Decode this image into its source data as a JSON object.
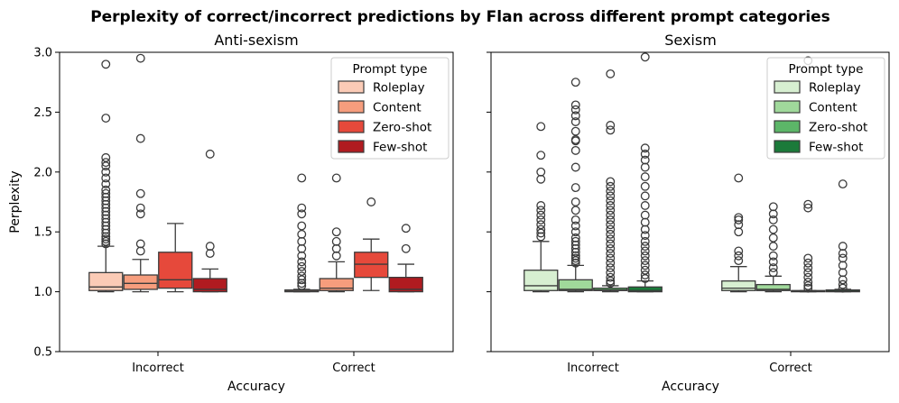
{
  "figure": {
    "title": "Perplexity of correct/incorrect predictions by Flan across different prompt categories"
  },
  "chart_data": [
    {
      "type": "box",
      "title": "Anti-sexism",
      "xlabel": "Accuracy",
      "ylabel": "Perplexity",
      "ylim": [
        0.5,
        3.0
      ],
      "yticks": [
        "0.5",
        "1.0",
        "1.5",
        "2.0",
        "2.5",
        "3.0"
      ],
      "categories": [
        "Incorrect",
        "Correct"
      ],
      "legend": {
        "title": "Prompt type",
        "placement": "top-right"
      },
      "series": [
        {
          "name": "Roleplay",
          "color": "#fbcbb6",
          "boxes": [
            {
              "q1": 1.01,
              "median": 1.04,
              "q3": 1.16,
              "whislo": 1.0,
              "whishi": 1.38,
              "fliers": [
                2.9,
                2.45,
                2.12,
                2.08,
                2.05,
                2.0,
                1.95,
                1.9,
                1.85,
                1.82,
                1.79,
                1.76,
                1.73,
                1.7,
                1.67,
                1.64,
                1.61,
                1.58,
                1.55,
                1.52,
                1.49,
                1.46,
                1.44,
                1.42,
                1.4
              ]
            },
            {
              "q1": 1.0,
              "median": 1.005,
              "q3": 1.015,
              "whislo": 1.0,
              "whishi": 1.02,
              "fliers": [
                1.95,
                1.7,
                1.65,
                1.55,
                1.48,
                1.42,
                1.36,
                1.3,
                1.25,
                1.21,
                1.17,
                1.13,
                1.1,
                1.07,
                1.05
              ]
            }
          ]
        },
        {
          "name": "Content",
          "color": "#f69d7d",
          "boxes": [
            {
              "q1": 1.02,
              "median": 1.07,
              "q3": 1.14,
              "whislo": 1.0,
              "whishi": 1.27,
              "fliers": [
                2.95,
                2.28,
                1.82,
                1.7,
                1.65,
                1.4,
                1.34
              ]
            },
            {
              "q1": 1.01,
              "median": 1.03,
              "q3": 1.11,
              "whislo": 1.0,
              "whishi": 1.25,
              "fliers": [
                1.95,
                1.5,
                1.42,
                1.36,
                1.3
              ]
            }
          ]
        },
        {
          "name": "Zero-shot",
          "color": "#e6493b",
          "boxes": [
            {
              "q1": 1.03,
              "median": 1.1,
              "q3": 1.33,
              "whislo": 1.0,
              "whishi": 1.57,
              "fliers": []
            },
            {
              "q1": 1.12,
              "median": 1.23,
              "q3": 1.33,
              "whislo": 1.01,
              "whishi": 1.44,
              "fliers": [
                1.75
              ]
            }
          ]
        },
        {
          "name": "Few-shot",
          "color": "#b01b20",
          "boxes": [
            {
              "q1": 1.0,
              "median": 1.02,
              "q3": 1.11,
              "whislo": 1.0,
              "whishi": 1.19,
              "fliers": [
                2.15,
                1.38,
                1.32
              ]
            },
            {
              "q1": 1.0,
              "median": 1.02,
              "q3": 1.12,
              "whislo": 1.0,
              "whishi": 1.23,
              "fliers": [
                1.53,
                1.36
              ]
            }
          ]
        }
      ]
    },
    {
      "type": "box",
      "title": "Sexism",
      "xlabel": "Accuracy",
      "ylabel": "",
      "ylim": [
        0.5,
        3.0
      ],
      "categories": [
        "Incorrect",
        "Correct"
      ],
      "legend": {
        "title": "Prompt type",
        "placement": "top-right"
      },
      "series": [
        {
          "name": "Roleplay",
          "color": "#d7efd1",
          "boxes": [
            {
              "q1": 1.01,
              "median": 1.05,
              "q3": 1.18,
              "whislo": 1.0,
              "whishi": 1.42,
              "fliers": [
                2.38,
                2.14,
                2.0,
                1.94,
                1.72,
                1.68,
                1.64,
                1.6,
                1.56,
                1.52,
                1.49,
                1.46
              ]
            },
            {
              "q1": 1.01,
              "median": 1.03,
              "q3": 1.09,
              "whislo": 1.0,
              "whishi": 1.21,
              "fliers": [
                1.95,
                1.62,
                1.6,
                1.56,
                1.5,
                1.34,
                1.3,
                1.26
              ]
            }
          ]
        },
        {
          "name": "Content",
          "color": "#a0d99b",
          "boxes": [
            {
              "q1": 1.01,
              "median": 1.02,
              "q3": 1.1,
              "whislo": 1.0,
              "whishi": 1.22,
              "fliers": [
                2.75,
                2.56,
                2.52,
                2.47,
                2.42,
                2.34,
                2.27,
                2.26,
                2.18,
                2.04,
                1.87,
                1.75,
                1.68,
                1.6,
                1.55,
                1.5,
                1.45,
                1.42,
                1.39,
                1.36,
                1.33,
                1.3,
                1.28,
                1.26,
                1.24
              ]
            },
            {
              "q1": 1.01,
              "median": 1.02,
              "q3": 1.06,
              "whislo": 1.0,
              "whishi": 1.13,
              "fliers": [
                1.71,
                1.65,
                1.6,
                1.52,
                1.45,
                1.38,
                1.3,
                1.25,
                1.2,
                1.16
              ]
            }
          ]
        },
        {
          "name": "Zero-shot",
          "color": "#5cb668",
          "boxes": [
            {
              "q1": 1.01,
              "median": 1.015,
              "q3": 1.03,
              "whislo": 1.0,
              "whishi": 1.05,
              "fliers": [
                2.82,
                2.39,
                2.35,
                1.92,
                1.88,
                1.84,
                1.8,
                1.76,
                1.72,
                1.68,
                1.64,
                1.6,
                1.56,
                1.52,
                1.48,
                1.44,
                1.4,
                1.36,
                1.32,
                1.28,
                1.24,
                1.2,
                1.16,
                1.12,
                1.09,
                1.07
              ]
            },
            {
              "q1": 1.0,
              "median": 1.005,
              "q3": 1.01,
              "whislo": 1.0,
              "whishi": 1.01,
              "fliers": [
                2.93,
                1.73,
                1.7,
                1.28,
                1.24,
                1.2,
                1.16,
                1.12,
                1.08,
                1.05,
                1.03
              ]
            }
          ]
        },
        {
          "name": "Few-shot",
          "color": "#1b7a3a",
          "boxes": [
            {
              "q1": 1.0,
              "median": 1.01,
              "q3": 1.04,
              "whislo": 1.0,
              "whishi": 1.09,
              "fliers": [
                2.96,
                2.2,
                2.15,
                2.1,
                2.04,
                1.96,
                1.88,
                1.8,
                1.72,
                1.64,
                1.58,
                1.52,
                1.47,
                1.42,
                1.38,
                1.34,
                1.3,
                1.26,
                1.22,
                1.18,
                1.14,
                1.11
              ]
            },
            {
              "q1": 1.0,
              "median": 1.005,
              "q3": 1.015,
              "whislo": 1.0,
              "whishi": 1.02,
              "fliers": [
                1.9,
                1.38,
                1.32,
                1.28,
                1.22,
                1.16,
                1.1,
                1.06,
                1.03
              ]
            }
          ]
        }
      ]
    }
  ]
}
